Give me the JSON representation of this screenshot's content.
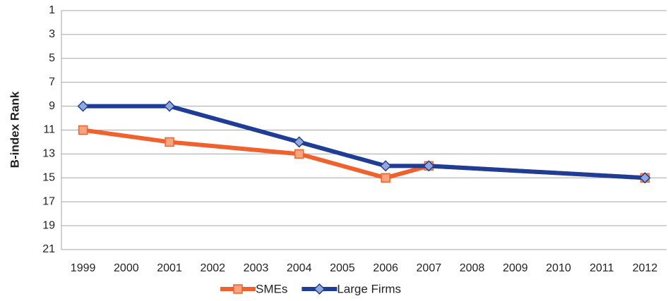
{
  "chart_data": {
    "type": "line",
    "y_label": "B-index Rank",
    "xlim": [
      1998.5,
      2012.5
    ],
    "xticks": [
      1999,
      2000,
      2001,
      2002,
      2003,
      2004,
      2005,
      2006,
      2007,
      2008,
      2009,
      2010,
      2011,
      2012
    ],
    "ylim": [
      21,
      1
    ],
    "yticks": [
      1,
      3,
      5,
      7,
      9,
      11,
      13,
      15,
      17,
      19,
      21
    ],
    "grid": true,
    "legend": "bottom",
    "series": [
      {
        "name": "SMEs",
        "color": "#f0612d",
        "marker_color": "#f7a47f",
        "marker": "square",
        "x": [
          1999,
          2001,
          2004,
          2006,
          2007,
          2012
        ],
        "values": [
          11,
          12,
          13,
          15,
          14,
          15
        ]
      },
      {
        "name": "Large Firms",
        "color": "#1f3d96",
        "marker_color": "#92a8da",
        "marker": "diamond",
        "x": [
          1999,
          2001,
          2004,
          2006,
          2007,
          2012
        ],
        "values": [
          9,
          9,
          12,
          14,
          14,
          15
        ]
      }
    ]
  }
}
